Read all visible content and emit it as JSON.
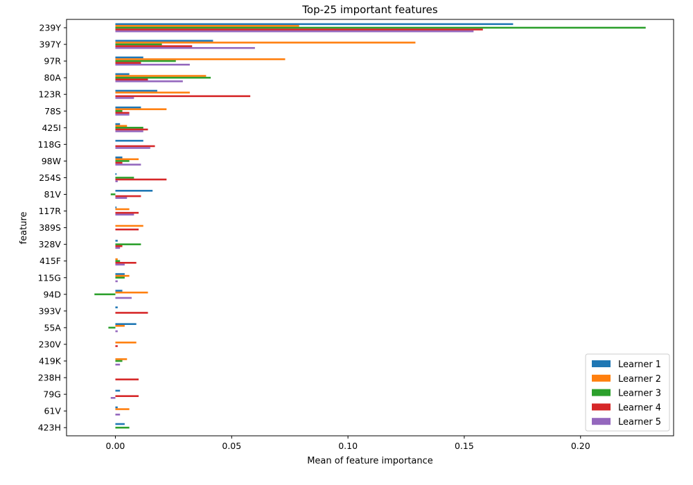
{
  "chart_data": {
    "type": "bar",
    "orientation": "horizontal",
    "title": "Top-25 important features",
    "xlabel": "Mean of feature importance",
    "ylabel": "feature",
    "xlim": [
      -0.021,
      0.24
    ],
    "xticks": [
      0.0,
      0.05,
      0.1,
      0.15,
      0.2
    ],
    "xtick_labels": [
      "0.00",
      "0.05",
      "0.10",
      "0.15",
      "0.20"
    ],
    "legend_position": "bottom-right",
    "grid": false,
    "categories": [
      "239Y",
      "397Y",
      "97R",
      "80A",
      "123R",
      "78S",
      "425I",
      "118G",
      "98W",
      "254S",
      "81V",
      "117R",
      "389S",
      "328V",
      "415F",
      "115G",
      "94D",
      "393V",
      "55A",
      "230V",
      "419K",
      "238H",
      "79G",
      "61V",
      "423H"
    ],
    "series": [
      {
        "name": "Learner 1",
        "color": "#1f77b4",
        "values": [
          0.171,
          0.042,
          0.012,
          0.006,
          0.018,
          0.011,
          0.002,
          0.012,
          0.003,
          0.0005,
          0.016,
          0.0005,
          0.0,
          0.001,
          0.0,
          0.004,
          0.003,
          0.001,
          0.009,
          0.0,
          0.0,
          0.0,
          0.002,
          0.001,
          0.004
        ]
      },
      {
        "name": "Learner 2",
        "color": "#ff7f0e",
        "values": [
          0.079,
          0.129,
          0.073,
          0.039,
          0.032,
          0.022,
          0.005,
          0.0,
          0.01,
          0.0,
          0.0,
          0.006,
          0.012,
          0.0,
          0.001,
          0.006,
          0.014,
          0.0,
          0.004,
          0.009,
          0.005,
          0.0,
          0.0,
          0.006,
          0.0
        ]
      },
      {
        "name": "Learner 3",
        "color": "#2ca02c",
        "values": [
          0.228,
          0.02,
          0.026,
          0.041,
          0.0,
          0.003,
          0.012,
          0.0,
          0.006,
          0.008,
          -0.002,
          0.0,
          0.0,
          0.011,
          0.002,
          0.004,
          -0.009,
          0.0,
          -0.003,
          0.0,
          0.003,
          0.0,
          0.0,
          0.0,
          0.006
        ]
      },
      {
        "name": "Learner 4",
        "color": "#d62728",
        "values": [
          0.158,
          0.033,
          0.011,
          0.014,
          0.058,
          0.006,
          0.014,
          0.017,
          0.003,
          0.022,
          0.011,
          0.01,
          0.01,
          0.003,
          0.009,
          0.0,
          0.0,
          0.014,
          0.0,
          0.001,
          0.0,
          0.01,
          0.01,
          0.0,
          0.0
        ]
      },
      {
        "name": "Learner 5",
        "color": "#9467bd",
        "values": [
          0.154,
          0.06,
          0.032,
          0.029,
          0.008,
          0.006,
          0.012,
          0.015,
          0.011,
          0.001,
          0.005,
          0.008,
          0.0,
          0.002,
          0.004,
          0.001,
          0.007,
          0.0,
          0.001,
          0.0,
          0.002,
          0.0,
          -0.002,
          0.002,
          0.0
        ]
      }
    ]
  }
}
